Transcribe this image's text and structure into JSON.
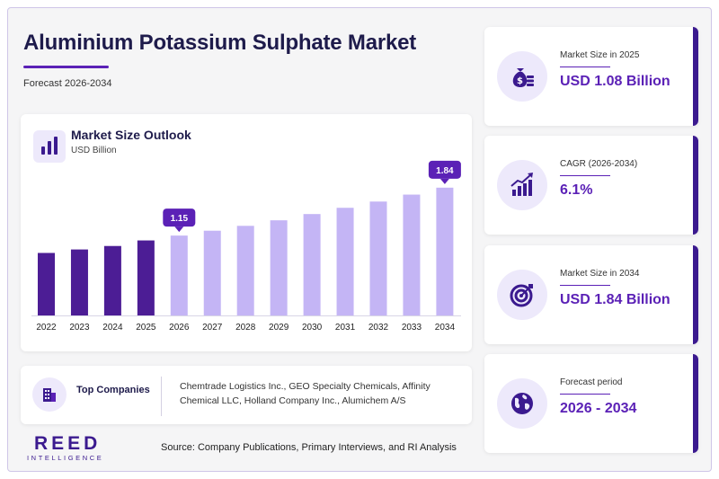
{
  "header": {
    "title": "Aluminium Potassium Sulphate Market",
    "subtitle": "Forecast 2026-2034"
  },
  "chart_card": {
    "title": "Market Size Outlook",
    "unit": "USD Billion"
  },
  "chart_data": {
    "type": "bar",
    "categories": [
      "2022",
      "2023",
      "2024",
      "2025",
      "2026",
      "2027",
      "2028",
      "2029",
      "2030",
      "2031",
      "2032",
      "2033",
      "2034"
    ],
    "values": [
      0.9,
      0.95,
      1.0,
      1.08,
      1.15,
      1.22,
      1.29,
      1.37,
      1.46,
      1.55,
      1.64,
      1.74,
      1.84
    ],
    "data_labels": [
      {
        "category": "2026",
        "label": "1.15"
      },
      {
        "category": "2034",
        "label": "1.84"
      }
    ],
    "historical_color": "#4c1d95",
    "forecast_color": "#c4b5f5",
    "label_color": "#5b21b6",
    "ylim": [
      0,
      2.2
    ],
    "grid": false
  },
  "companies": {
    "label": "Top Companies",
    "text": "Chemtrade Logistics Inc., GEO Specialty Chemicals, Affinity Chemical LLC, Holland Company Inc., Alumichem A/S"
  },
  "stats": [
    {
      "label": "Market Size in 2025",
      "value": "USD 1.08 Billion",
      "icon": "money-bag-icon"
    },
    {
      "label": "CAGR (2026-2034)",
      "value": "6.1%",
      "icon": "growth-chart-icon"
    },
    {
      "label": "Market Size in 2034",
      "value": "USD 1.84 Billion",
      "icon": "target-icon"
    },
    {
      "label": "Forecast period",
      "value": "2026 - 2034",
      "icon": "globe-icon"
    }
  ],
  "footer": {
    "logo_main": "REED",
    "logo_sub": "INTELLIGENCE",
    "source": "Source: Company Publications, Primary Interviews, and RI Analysis"
  },
  "colors": {
    "accent": "#5b21b6",
    "dark": "#1e1b4b",
    "icon_bg": "#ede9fb"
  }
}
